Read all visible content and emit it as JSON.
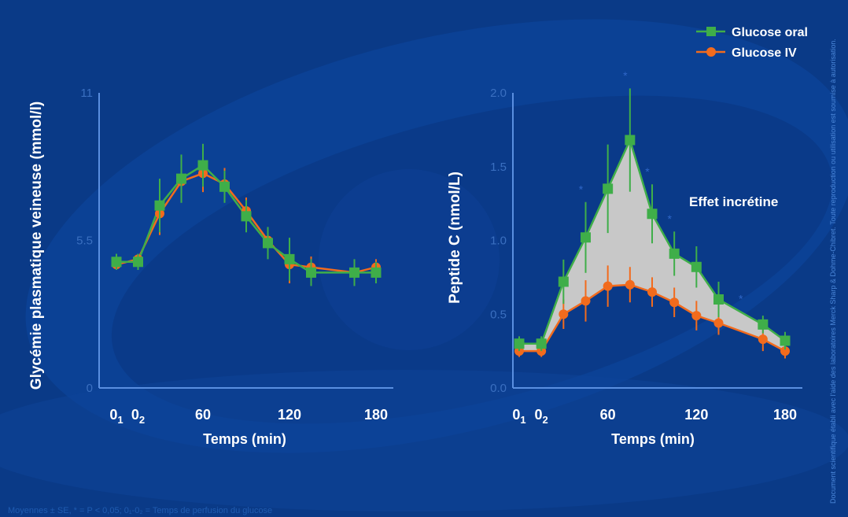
{
  "legend": {
    "oral": "Glucose oral",
    "iv": "Glucose IV"
  },
  "colors": {
    "background": "#0a3a87",
    "oral": "#3fae49",
    "iv": "#f26b1d",
    "axis": "#5a8fe0",
    "fill_between": "#c8c8c8"
  },
  "footnote": "Moyennes ± SE, * = P < 0,05; 0₁-0₂ = Temps de perfusion du glucose",
  "side_note": "Document scientifique établi avec l'aide des laboratoires Merck Sharp & Dohme-Chibret. Toute reproduction ou utilisation est soumise à autorisation.",
  "chart_data": [
    {
      "type": "line",
      "ylabel": "Glycémie plasmatique veineuse (mmol/l)",
      "xlabel": "Temps (min)",
      "xticks": [
        {
          "value": 0,
          "label": "0",
          "sub": "1"
        },
        {
          "value": 15,
          "label": "0",
          "sub": "2"
        },
        {
          "value": 60,
          "label": "60",
          "sub": ""
        },
        {
          "value": 120,
          "label": "120",
          "sub": ""
        },
        {
          "value": 180,
          "label": "180",
          "sub": ""
        }
      ],
      "yticks": [
        {
          "value": 0,
          "label": "0"
        },
        {
          "value": 5.5,
          "label": "5.5"
        },
        {
          "value": 11,
          "label": "11"
        }
      ],
      "xlim": [
        0,
        180
      ],
      "ylim": [
        0,
        11
      ],
      "series": [
        {
          "name": "Glucose oral",
          "x": [
            0,
            15,
            30,
            45,
            60,
            75,
            90,
            105,
            120,
            135,
            165,
            180
          ],
          "y": [
            4.7,
            4.7,
            6.8,
            7.8,
            8.3,
            7.5,
            6.4,
            5.4,
            4.8,
            4.3,
            4.3,
            4.3
          ],
          "err": [
            0.3,
            0.3,
            1.0,
            0.9,
            0.8,
            0.6,
            0.6,
            0.6,
            0.8,
            0.5,
            0.5,
            0.4
          ]
        },
        {
          "name": "Glucose IV",
          "x": [
            0,
            15,
            30,
            45,
            60,
            75,
            90,
            105,
            120,
            135,
            165,
            180
          ],
          "y": [
            4.6,
            4.8,
            6.5,
            7.7,
            8.0,
            7.6,
            6.6,
            5.5,
            4.6,
            4.5,
            4.3,
            4.5
          ],
          "err": [
            0.2,
            0.2,
            0.8,
            0.5,
            0.7,
            0.6,
            0.5,
            0.5,
            0.7,
            0.4,
            0.3,
            0.3
          ]
        }
      ]
    },
    {
      "type": "line",
      "ylabel": "Peptide C (nmol/L)",
      "xlabel": "Temps (min)",
      "annotation": "Effet incrétine",
      "xticks": [
        {
          "value": 0,
          "label": "0",
          "sub": "1"
        },
        {
          "value": 15,
          "label": "0",
          "sub": "2"
        },
        {
          "value": 60,
          "label": "60",
          "sub": ""
        },
        {
          "value": 120,
          "label": "120",
          "sub": ""
        },
        {
          "value": 180,
          "label": "180",
          "sub": ""
        }
      ],
      "yticks": [
        {
          "value": 0.0,
          "label": "0.0"
        },
        {
          "value": 0.5,
          "label": "0.5"
        },
        {
          "value": 1.0,
          "label": "1.0"
        },
        {
          "value": 1.5,
          "label": "1.5"
        },
        {
          "value": 2.0,
          "label": "2.0"
        }
      ],
      "xlim": [
        0,
        180
      ],
      "ylim": [
        0,
        2.0
      ],
      "series": [
        {
          "name": "Glucose oral",
          "x": [
            0,
            15,
            30,
            45,
            60,
            75,
            90,
            105,
            120,
            135,
            165,
            180
          ],
          "y": [
            0.3,
            0.3,
            0.72,
            1.02,
            1.35,
            1.68,
            1.18,
            0.91,
            0.82,
            0.6,
            0.43,
            0.32
          ],
          "err": [
            0.05,
            0.05,
            0.15,
            0.24,
            0.3,
            0.35,
            0.2,
            0.15,
            0.14,
            0.12,
            0.06,
            0.06
          ]
        },
        {
          "name": "Glucose IV",
          "x": [
            0,
            15,
            30,
            45,
            60,
            75,
            90,
            105,
            120,
            135,
            165,
            180
          ],
          "y": [
            0.25,
            0.25,
            0.5,
            0.59,
            0.69,
            0.7,
            0.65,
            0.58,
            0.49,
            0.44,
            0.33,
            0.25
          ],
          "err": [
            0.04,
            0.04,
            0.1,
            0.14,
            0.14,
            0.12,
            0.1,
            0.1,
            0.1,
            0.08,
            0.08,
            0.05
          ]
        }
      ],
      "significance_x": [
        45,
        75,
        90,
        105,
        150
      ],
      "significance_label": "*"
    }
  ]
}
